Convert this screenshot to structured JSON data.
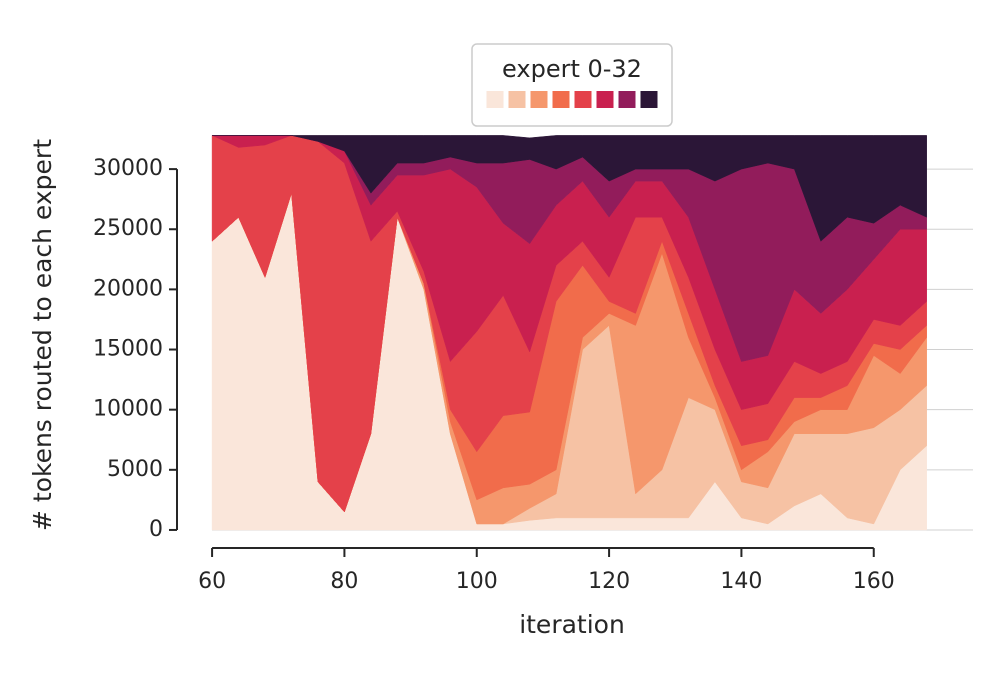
{
  "chart_data": {
    "type": "stackedarea",
    "xlabel": "iteration",
    "ylabel": "# tokens routed to each expert",
    "legend_title": "expert 0-32",
    "legend": "upper center",
    "grid": true,
    "x": [
      60,
      64,
      68,
      72,
      76,
      80,
      84,
      88,
      92,
      96,
      100,
      104,
      108,
      112,
      116,
      120,
      124,
      128,
      132,
      136,
      140,
      144,
      148,
      152,
      156,
      160,
      164,
      168
    ],
    "xlim": [
      55,
      175
    ],
    "xticks": [
      60,
      80,
      100,
      120,
      140,
      160
    ],
    "ylim": [
      -1500,
      33500
    ],
    "yticks": [
      0,
      5000,
      10000,
      15000,
      20000,
      25000,
      30000
    ],
    "series": [
      {
        "color": "#fae6da",
        "values": [
          24000,
          26000,
          21000,
          28000,
          4000,
          1500,
          8000,
          26000,
          20000,
          8000,
          500,
          500,
          800,
          1000,
          1000,
          1000,
          1000,
          1000,
          1000,
          4000,
          1000,
          500,
          2000,
          3000,
          1000,
          500,
          5000,
          7000
        ]
      },
      {
        "color": "#f6c2a4",
        "values": [
          0,
          0,
          0,
          0,
          0,
          0,
          0,
          0,
          0,
          0,
          0,
          0,
          1000,
          2000,
          14000,
          16000,
          2000,
          4000,
          10000,
          6000,
          3000,
          3000,
          6000,
          5000,
          7000,
          8000,
          5000,
          5000
        ]
      },
      {
        "color": "#f5976c",
        "values": [
          0,
          0,
          0,
          0,
          0,
          0,
          0,
          0,
          500,
          1000,
          2000,
          3000,
          2000,
          2000,
          1000,
          1000,
          14000,
          18000,
          5000,
          1000,
          1000,
          3000,
          1000,
          2000,
          2000,
          6000,
          3000,
          4000
        ]
      },
      {
        "color": "#f16c4b",
        "values": [
          0,
          0,
          0,
          0,
          0,
          0,
          0,
          0,
          0,
          1000,
          4000,
          6000,
          6000,
          14000,
          6000,
          1000,
          1000,
          1000,
          2000,
          1000,
          2000,
          1000,
          2000,
          1000,
          2000,
          1000,
          2000,
          1000
        ]
      },
      {
        "color": "#e4414a",
        "values": [
          8800,
          5800,
          11000,
          4800,
          28300,
          29000,
          16000,
          500,
          1000,
          4000,
          10000,
          10000,
          5000,
          3000,
          2000,
          2000,
          8000,
          2000,
          3000,
          3000,
          3000,
          3000,
          3000,
          2000,
          2000,
          2000,
          2000,
          2000
        ]
      },
      {
        "color": "#c9204f",
        "values": [
          0,
          1000,
          800,
          0,
          0,
          1000,
          3000,
          3000,
          8000,
          16000,
          12000,
          6000,
          9000,
          5000,
          5000,
          5000,
          3000,
          3000,
          5000,
          5000,
          4000,
          4000,
          6000,
          5000,
          6000,
          5000,
          8000,
          6000
        ]
      },
      {
        "color": "#921c5b",
        "values": [
          0,
          0,
          0,
          0,
          0,
          0,
          1000,
          1000,
          1000,
          1000,
          2000,
          5000,
          7000,
          3000,
          2000,
          3000,
          1000,
          1000,
          4000,
          9000,
          16000,
          16000,
          10000,
          6000,
          6000,
          3000,
          2000,
          1000
        ]
      },
      {
        "color": "#2b1637",
        "values": [
          0,
          0,
          0,
          0,
          500,
          1300,
          4800,
          2300,
          2300,
          1800,
          2300,
          2300,
          1800,
          2800,
          1800,
          3800,
          2800,
          2800,
          2800,
          3800,
          2800,
          2300,
          2800,
          8800,
          6800,
          7300,
          5800,
          6800
        ]
      }
    ]
  }
}
